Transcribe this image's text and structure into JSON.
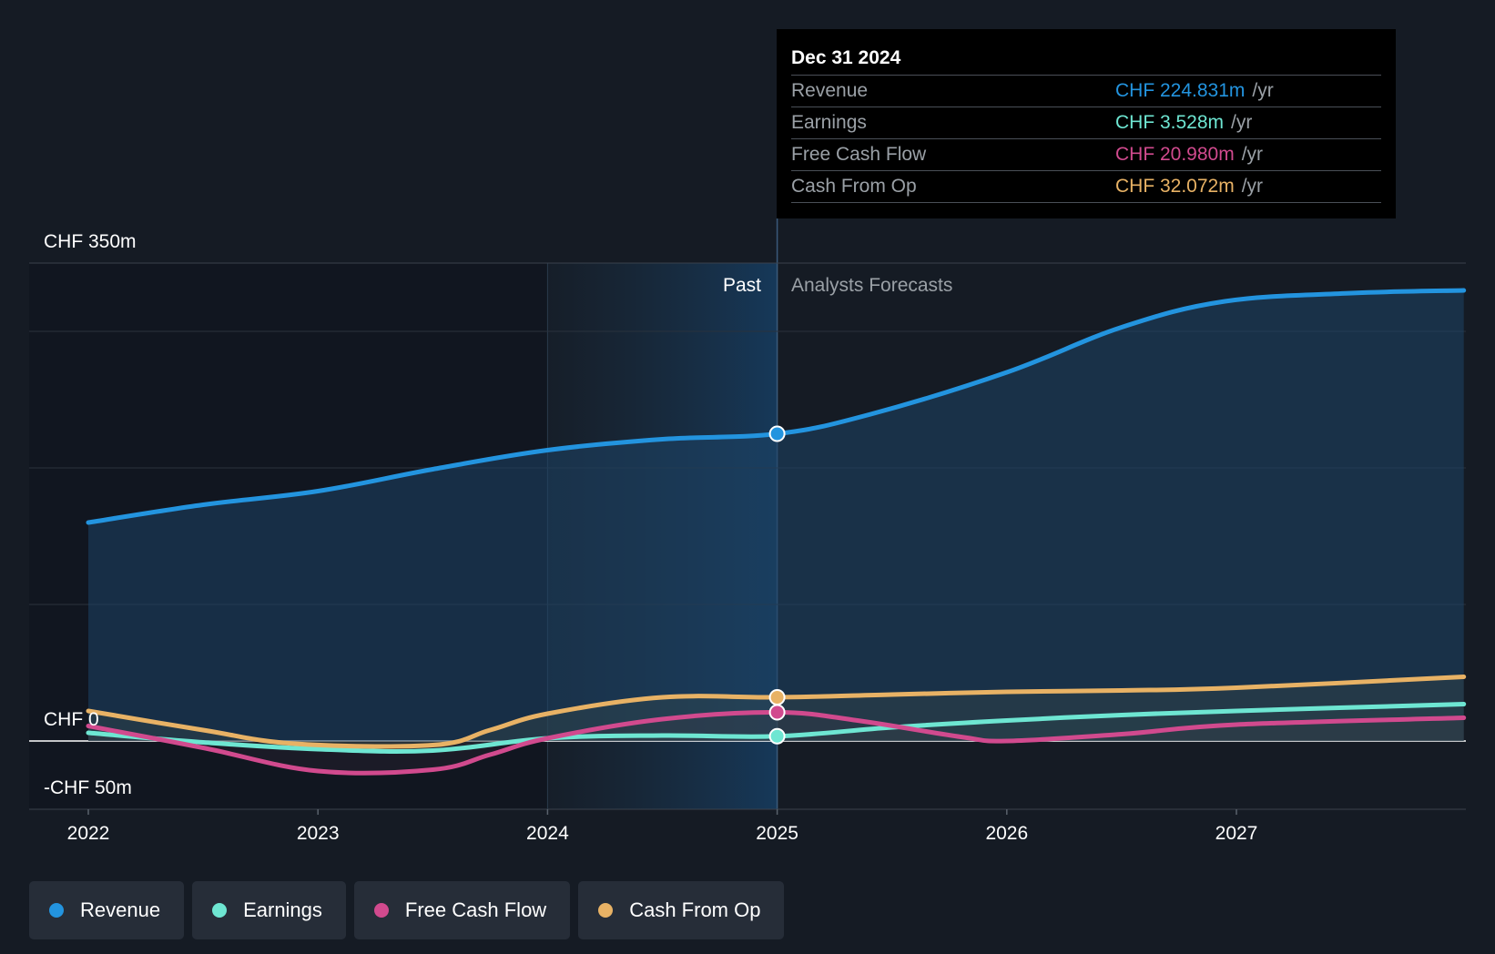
{
  "chart_data": {
    "type": "line",
    "currency_label_top": "CHF 350m",
    "currency_label_zero": "CHF 0",
    "currency_label_bottom": "-CHF 50m",
    "ylim": [
      -50,
      350
    ],
    "xlim": [
      2022,
      2027.99
    ],
    "x_ticks": [
      "2022",
      "2023",
      "2024",
      "2025",
      "2026",
      "2027"
    ],
    "past_label": "Past",
    "forecast_label": "Analysts Forecasts",
    "divider_x": 2025.0,
    "highlight_start_x": 2024.0,
    "series": [
      {
        "name": "Revenue",
        "color": "#2394df",
        "points": [
          [
            2022.0,
            160
          ],
          [
            2022.5,
            173
          ],
          [
            2023.0,
            183
          ],
          [
            2023.5,
            199
          ],
          [
            2024.0,
            213
          ],
          [
            2024.5,
            221
          ],
          [
            2025.0,
            225
          ],
          [
            2025.4,
            239
          ],
          [
            2026.0,
            270
          ],
          [
            2026.5,
            303
          ],
          [
            2026.95,
            322
          ],
          [
            2027.5,
            328
          ],
          [
            2027.99,
            330
          ]
        ]
      },
      {
        "name": "Earnings",
        "color": "#6ee6d2",
        "points": [
          [
            2022.0,
            6
          ],
          [
            2022.5,
            -1
          ],
          [
            2023.0,
            -6
          ],
          [
            2023.5,
            -7
          ],
          [
            2024.0,
            2
          ],
          [
            2024.5,
            4
          ],
          [
            2025.0,
            3.5
          ],
          [
            2025.5,
            10
          ],
          [
            2026.0,
            15
          ],
          [
            2026.5,
            19
          ],
          [
            2027.0,
            22
          ],
          [
            2027.99,
            27
          ]
        ]
      },
      {
        "name": "Free Cash Flow",
        "color": "#d14a8e",
        "points": [
          [
            2022.0,
            11
          ],
          [
            2022.5,
            -5
          ],
          [
            2023.0,
            -22
          ],
          [
            2023.5,
            -21
          ],
          [
            2023.75,
            -10
          ],
          [
            2024.0,
            2
          ],
          [
            2024.5,
            16
          ],
          [
            2025.0,
            21
          ],
          [
            2025.35,
            15
          ],
          [
            2025.8,
            3
          ],
          [
            2026.0,
            0
          ],
          [
            2026.5,
            5
          ],
          [
            2027.0,
            12
          ],
          [
            2027.99,
            17
          ]
        ]
      },
      {
        "name": "Cash From Op",
        "color": "#e8b265",
        "points": [
          [
            2022.0,
            22
          ],
          [
            2022.5,
            8
          ],
          [
            2022.9,
            -2
          ],
          [
            2023.5,
            -3
          ],
          [
            2023.75,
            8
          ],
          [
            2024.0,
            20
          ],
          [
            2024.5,
            32
          ],
          [
            2025.0,
            32
          ],
          [
            2025.5,
            34
          ],
          [
            2026.0,
            36
          ],
          [
            2026.5,
            37
          ],
          [
            2027.0,
            39
          ],
          [
            2027.99,
            47
          ]
        ]
      }
    ]
  },
  "tooltip": {
    "date": "Dec 31 2024",
    "rows": [
      {
        "name": "Revenue",
        "value": "CHF 224.831m",
        "unit": "/yr",
        "color": "#2394df"
      },
      {
        "name": "Earnings",
        "value": "CHF 3.528m",
        "unit": "/yr",
        "color": "#6ee6d2"
      },
      {
        "name": "Free Cash Flow",
        "value": "CHF 20.980m",
        "unit": "/yr",
        "color": "#d14a8e"
      },
      {
        "name": "Cash From Op",
        "value": "CHF 32.072m",
        "unit": "/yr",
        "color": "#e8b265"
      }
    ]
  },
  "legend": [
    {
      "label": "Revenue",
      "color": "#2394df"
    },
    {
      "label": "Earnings",
      "color": "#6ee6d2"
    },
    {
      "label": "Free Cash Flow",
      "color": "#d14a8e"
    },
    {
      "label": "Cash From Op",
      "color": "#e8b265"
    }
  ]
}
